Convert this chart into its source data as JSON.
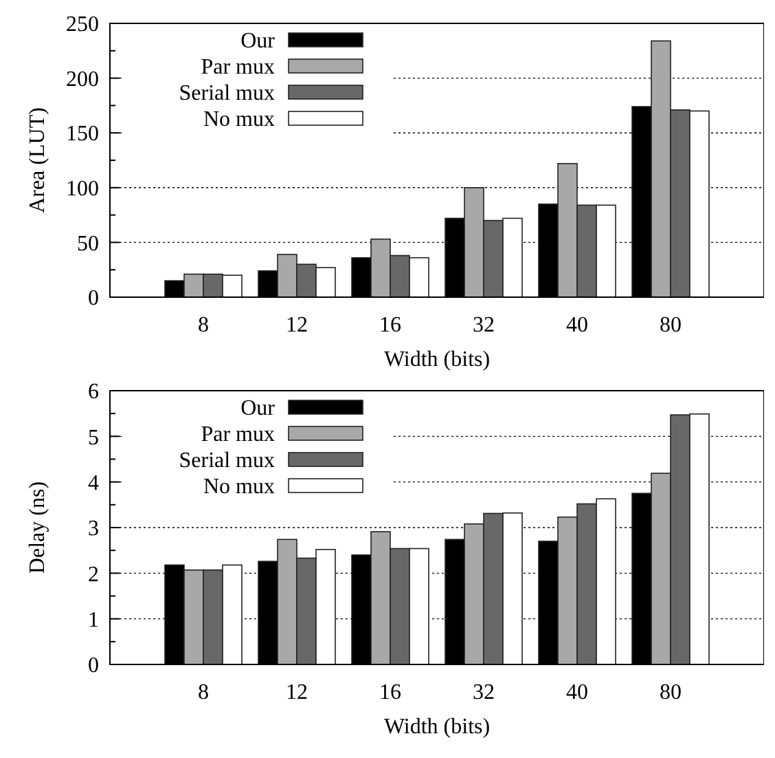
{
  "chart_data": [
    {
      "type": "bar",
      "categories": [
        "8",
        "12",
        "16",
        "32",
        "40",
        "80"
      ],
      "xlabel": "Width (bits)",
      "ylabel": "Area (LUT)",
      "ylim": [
        0,
        250
      ],
      "yticks": [
        0,
        {
          "value": 25,
          "label": null
        },
        50,
        {
          "value": 75,
          "label": null
        },
        100,
        {
          "value": 125,
          "label": null
        },
        150,
        {
          "value": 175,
          "label": null
        },
        200,
        {
          "value": 225,
          "label": null
        },
        250
      ],
      "grid": "y",
      "legend": "top left",
      "series": [
        {
          "name": "Our",
          "color": "#000000",
          "values": [
            15,
            24,
            36,
            72,
            85,
            174
          ]
        },
        {
          "name": "Par mux",
          "color": "#a8a8a8",
          "values": [
            21,
            39,
            53,
            100,
            122,
            234
          ]
        },
        {
          "name": "Serial mux",
          "color": "#686868",
          "values": [
            21,
            30,
            38,
            70,
            84,
            171
          ]
        },
        {
          "name": "No mux",
          "color": "#ffffff",
          "values": [
            20,
            27,
            36,
            72,
            84,
            170
          ]
        }
      ]
    },
    {
      "type": "bar",
      "categories": [
        "8",
        "12",
        "16",
        "32",
        "40",
        "80"
      ],
      "xlabel": "Width (bits)",
      "ylabel": "Delay (ns)",
      "ylim": [
        0,
        6
      ],
      "yticks": [
        0,
        {
          "value": 0.5,
          "label": null
        },
        1,
        {
          "value": 1.5,
          "label": null
        },
        2,
        {
          "value": 2.5,
          "label": null
        },
        3,
        {
          "value": 3.5,
          "label": null
        },
        4,
        {
          "value": 4.5,
          "label": null
        },
        5,
        {
          "value": 5.5,
          "label": null
        },
        6
      ],
      "grid": "y",
      "legend": "top left",
      "series": [
        {
          "name": "Our",
          "color": "#000000",
          "values": [
            2.18,
            2.26,
            2.4,
            2.74,
            2.7,
            3.75
          ]
        },
        {
          "name": "Par mux",
          "color": "#a8a8a8",
          "values": [
            2.07,
            2.74,
            2.91,
            3.08,
            3.23,
            4.19
          ]
        },
        {
          "name": "Serial mux",
          "color": "#686868",
          "values": [
            2.07,
            2.33,
            2.54,
            3.31,
            3.52,
            5.47
          ]
        },
        {
          "name": "No mux",
          "color": "#ffffff",
          "values": [
            2.18,
            2.52,
            2.54,
            3.32,
            3.63,
            5.49
          ]
        }
      ]
    }
  ]
}
